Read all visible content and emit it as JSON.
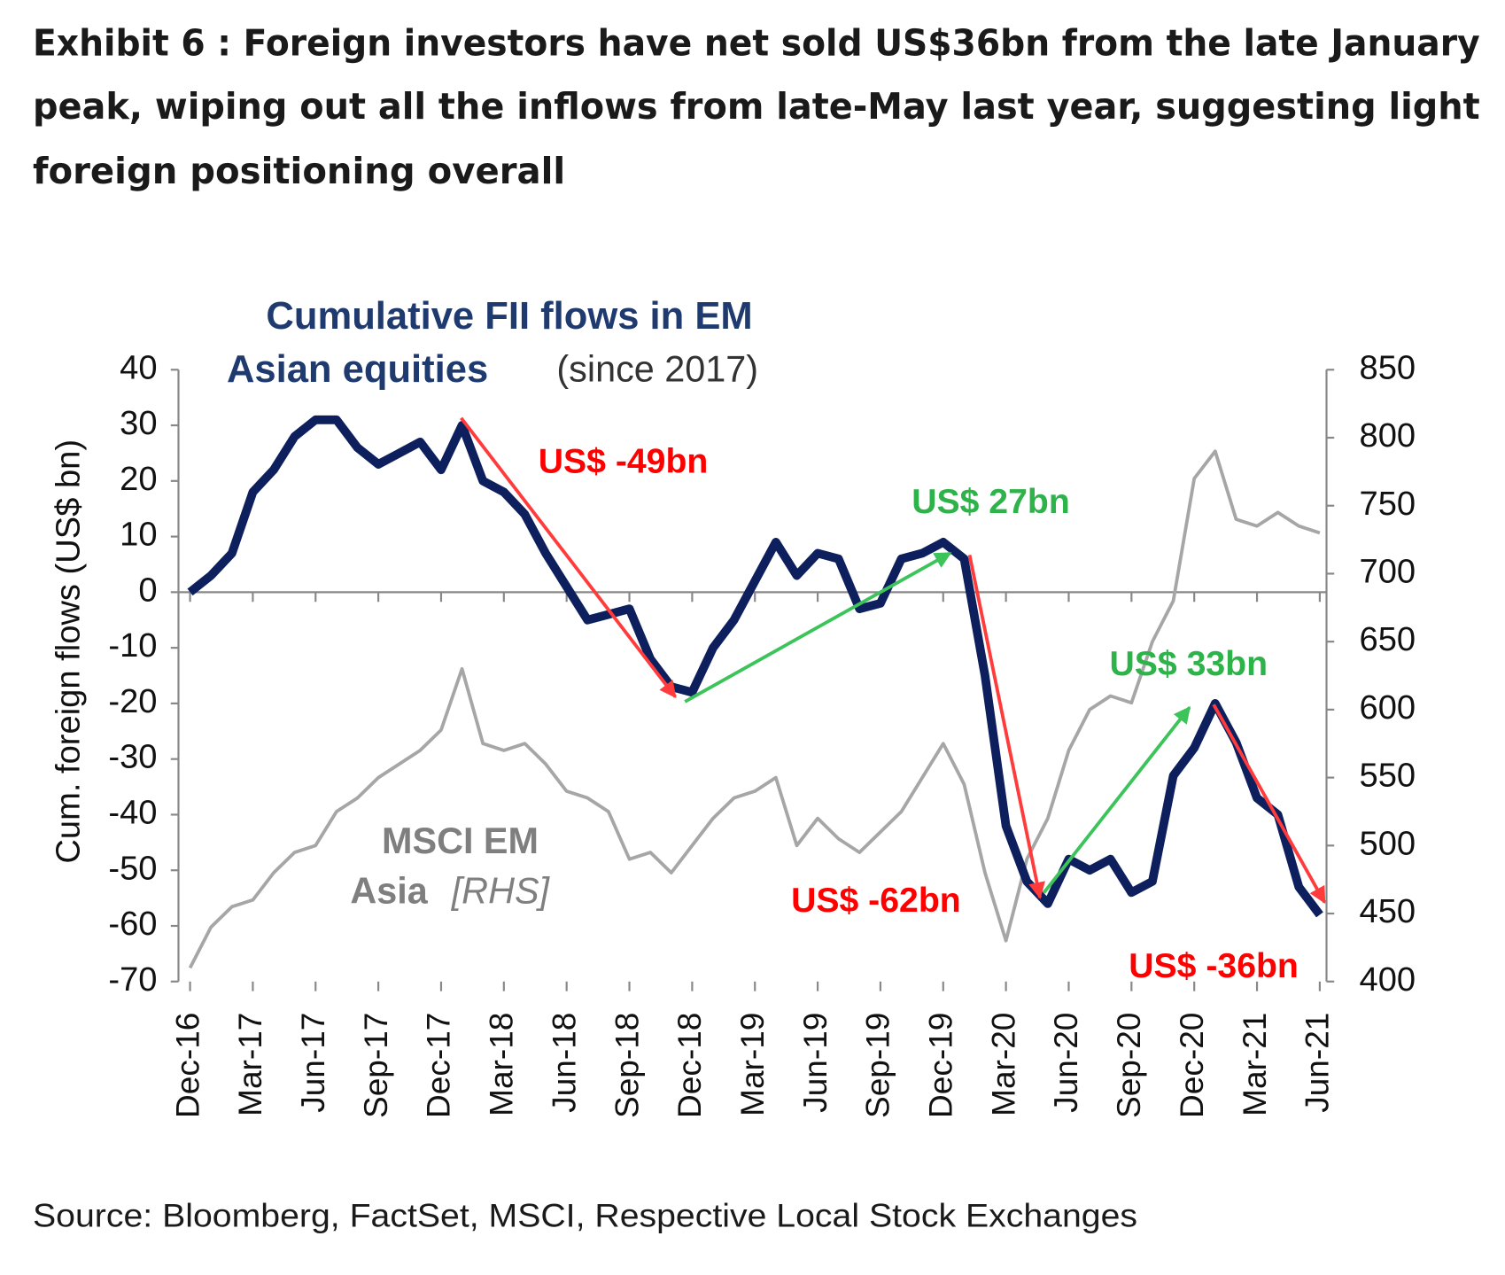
{
  "title_lines": [
    "Exhibit 6 : Foreign investors have net sold US$36bn from the late January",
    "peak, wiping out all the inflows from late-May last year, suggesting light",
    "foreign positioning overall"
  ],
  "source": "Source: Bloomberg, FactSet, MSCI, Respective Local Stock Exchanges",
  "chart_data": {
    "type": "line",
    "title_lines": [
      "Cumulative FII flows in EM",
      "Asian equities"
    ],
    "title_note": "(since 2017)",
    "y_label": "Cum. foreign flows (US$ bn)",
    "series_labels": [
      "MSCI EM",
      "Asia",
      "[RHS]"
    ],
    "categories": [
      "Dec-16",
      null,
      null,
      "Mar-17",
      null,
      null,
      "Jun-17",
      null,
      null,
      "Sep-17",
      null,
      null,
      "Dec-17",
      null,
      null,
      "Mar-18",
      null,
      null,
      "Jun-18",
      null,
      null,
      "Sep-18",
      null,
      null,
      "Dec-18",
      null,
      null,
      "Mar-19",
      null,
      null,
      "Jun-19",
      null,
      null,
      "Sep-19",
      null,
      null,
      "Dec-19",
      null,
      null,
      "Mar-20",
      null,
      null,
      "Jun-20",
      null,
      null,
      "Sep-20",
      null,
      null,
      "Dec-20",
      null,
      null,
      "Mar-21",
      null,
      null,
      "Jun-21"
    ],
    "series": [
      {
        "name": "Cumulative FII flows",
        "color": "#0d1f5c",
        "axis": "y",
        "values": [
          0,
          3,
          7,
          18,
          22,
          28,
          31,
          31,
          26,
          23,
          25,
          27,
          22,
          30,
          20,
          18,
          14,
          7,
          1,
          -5,
          -4,
          -3,
          -12,
          -17,
          -18,
          -10,
          -5,
          2,
          9,
          3,
          7,
          6,
          -3,
          -2,
          6,
          7,
          9,
          6,
          -15,
          -42,
          -52,
          -56,
          -48,
          -50,
          -48,
          -54,
          -52,
          -33,
          -28,
          -20,
          -27,
          -37,
          -40,
          -53,
          -58
        ]
      },
      {
        "name": "MSCI EM Asia",
        "color": "#a6a6a6",
        "axis": "y2",
        "values": [
          410,
          440,
          455,
          460,
          480,
          495,
          500,
          525,
          535,
          550,
          560,
          570,
          585,
          630,
          575,
          570,
          575,
          560,
          540,
          535,
          525,
          490,
          495,
          480,
          500,
          520,
          535,
          540,
          550,
          500,
          520,
          505,
          495,
          510,
          525,
          550,
          575,
          545,
          480,
          430,
          490,
          520,
          570,
          600,
          610,
          605,
          650,
          680,
          770,
          790,
          740,
          735,
          745,
          735,
          730
        ]
      }
    ],
    "ylim": [
      -70,
      40
    ],
    "yticks": [
      -70,
      -60,
      -50,
      -40,
      -30,
      -20,
      -10,
      0,
      10,
      20,
      30,
      40
    ],
    "y2lim": [
      400,
      850
    ],
    "y2ticks": [
      400,
      450,
      500,
      550,
      600,
      650,
      700,
      750,
      800,
      850
    ],
    "annotations": [
      {
        "text": "US$ -49bn",
        "color": "#ff0000"
      },
      {
        "text": "US$ 27bn",
        "color": "#2db34a"
      },
      {
        "text": "US$ 33bn",
        "color": "#2db34a"
      },
      {
        "text": "US$ -62bn",
        "color": "#ff0000"
      },
      {
        "text": "US$ -36bn",
        "color": "#ff0000"
      }
    ]
  }
}
